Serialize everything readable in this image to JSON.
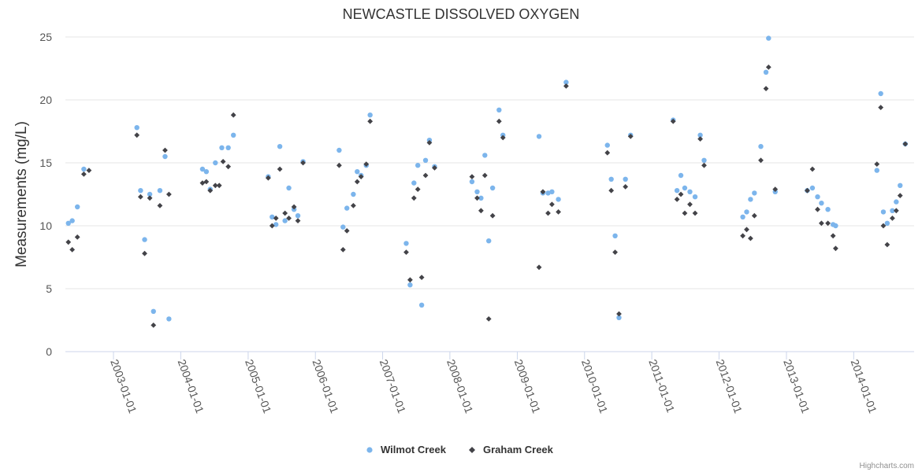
{
  "colors": {
    "wilmot": "#7cb5ec",
    "graham": "#434348"
  },
  "credits": "Highcharts.com",
  "chart_data": {
    "type": "scatter",
    "title": "NEWCASTLE DISSOLVED OXYGEN",
    "ylabel": "Measurements (mg/L)",
    "xlabel": "",
    "ylim": [
      0,
      25
    ],
    "yticks": [
      0,
      5,
      10,
      15,
      20,
      25
    ],
    "xlim": [
      "2002-04-15",
      "2014-11-25"
    ],
    "xticks": [
      "2003-01-01",
      "2004-01-01",
      "2005-01-01",
      "2006-01-01",
      "2007-01-01",
      "2008-01-01",
      "2009-01-01",
      "2010-01-01",
      "2011-01-01",
      "2012-01-01",
      "2013-01-01",
      "2014-01-01"
    ],
    "legend": "bottom-center",
    "series": [
      {
        "name": "Wilmot Creek",
        "marker": "circle",
        "points": [
          [
            "2002-05-01",
            10.2
          ],
          [
            "2002-05-22",
            10.4
          ],
          [
            "2002-06-19",
            11.5
          ],
          [
            "2002-07-24",
            14.5
          ],
          [
            "2003-05-08",
            17.8
          ],
          [
            "2003-05-28",
            12.8
          ],
          [
            "2003-06-19",
            8.9
          ],
          [
            "2003-07-17",
            12.5
          ],
          [
            "2003-08-06",
            3.2
          ],
          [
            "2003-09-10",
            12.8
          ],
          [
            "2003-10-08",
            15.5
          ],
          [
            "2003-10-29",
            2.6
          ],
          [
            "2004-04-28",
            14.5
          ],
          [
            "2004-05-19",
            14.3
          ],
          [
            "2004-06-09",
            12.9
          ],
          [
            "2004-07-07",
            15.0
          ],
          [
            "2004-08-11",
            16.2
          ],
          [
            "2004-09-15",
            16.2
          ],
          [
            "2004-10-13",
            17.2
          ],
          [
            "2005-04-20",
            13.9
          ],
          [
            "2005-05-11",
            10.7
          ],
          [
            "2005-06-01",
            10.1
          ],
          [
            "2005-06-22",
            16.3
          ],
          [
            "2005-07-20",
            10.4
          ],
          [
            "2005-08-10",
            13.0
          ],
          [
            "2005-09-07",
            11.3
          ],
          [
            "2005-09-28",
            10.8
          ],
          [
            "2005-10-26",
            15.1
          ],
          [
            "2006-05-10",
            16.0
          ],
          [
            "2006-05-31",
            9.9
          ],
          [
            "2006-06-21",
            11.4
          ],
          [
            "2006-07-26",
            12.5
          ],
          [
            "2006-08-16",
            14.3
          ],
          [
            "2006-09-06",
            14.0
          ],
          [
            "2006-10-04",
            14.8
          ],
          [
            "2006-10-25",
            18.8
          ],
          [
            "2007-05-09",
            8.6
          ],
          [
            "2007-05-30",
            5.3
          ],
          [
            "2007-06-20",
            13.4
          ],
          [
            "2007-07-11",
            14.8
          ],
          [
            "2007-08-01",
            3.7
          ],
          [
            "2007-08-22",
            15.2
          ],
          [
            "2007-09-12",
            16.8
          ],
          [
            "2007-10-10",
            14.7
          ],
          [
            "2008-04-30",
            13.5
          ],
          [
            "2008-05-28",
            12.7
          ],
          [
            "2008-06-18",
            12.2
          ],
          [
            "2008-07-09",
            15.6
          ],
          [
            "2008-07-30",
            8.8
          ],
          [
            "2008-08-20",
            13.0
          ],
          [
            "2008-09-24",
            19.2
          ],
          [
            "2008-10-15",
            17.2
          ],
          [
            "2009-04-29",
            17.1
          ],
          [
            "2009-05-20",
            12.6
          ],
          [
            "2009-06-17",
            12.6
          ],
          [
            "2009-07-08",
            12.7
          ],
          [
            "2009-08-12",
            12.1
          ],
          [
            "2009-09-23",
            21.4
          ],
          [
            "2010-05-05",
            16.4
          ],
          [
            "2010-05-26",
            13.7
          ],
          [
            "2010-06-16",
            9.2
          ],
          [
            "2010-07-07",
            2.7
          ],
          [
            "2010-08-11",
            13.7
          ],
          [
            "2010-09-08",
            17.2
          ],
          [
            "2011-04-27",
            18.4
          ],
          [
            "2011-05-18",
            12.8
          ],
          [
            "2011-06-08",
            14.0
          ],
          [
            "2011-06-29",
            13.0
          ],
          [
            "2011-07-27",
            12.7
          ],
          [
            "2011-08-24",
            12.3
          ],
          [
            "2011-09-21",
            17.2
          ],
          [
            "2011-10-12",
            15.2
          ],
          [
            "2012-05-09",
            10.7
          ],
          [
            "2012-05-30",
            11.1
          ],
          [
            "2012-06-20",
            12.1
          ],
          [
            "2012-07-11",
            12.6
          ],
          [
            "2012-08-15",
            16.3
          ],
          [
            "2012-09-12",
            22.2
          ],
          [
            "2012-09-26",
            24.9
          ],
          [
            "2012-11-01",
            12.7
          ],
          [
            "2013-04-24",
            12.8
          ],
          [
            "2013-05-22",
            13.0
          ],
          [
            "2013-06-19",
            12.3
          ],
          [
            "2013-07-10",
            11.8
          ],
          [
            "2013-08-14",
            11.3
          ],
          [
            "2013-09-11",
            10.1
          ],
          [
            "2013-09-25",
            10.0
          ],
          [
            "2014-05-07",
            14.4
          ],
          [
            "2014-05-28",
            20.5
          ],
          [
            "2014-06-11",
            11.1
          ],
          [
            "2014-07-02",
            10.2
          ],
          [
            "2014-07-30",
            11.2
          ],
          [
            "2014-08-20",
            11.9
          ],
          [
            "2014-09-10",
            13.2
          ],
          [
            "2014-10-08",
            16.5
          ]
        ]
      },
      {
        "name": "Graham Creek",
        "marker": "diamond",
        "points": [
          [
            "2002-05-01",
            8.7
          ],
          [
            "2002-05-22",
            8.1
          ],
          [
            "2002-06-19",
            9.1
          ],
          [
            "2002-07-24",
            14.1
          ],
          [
            "2002-08-21",
            14.4
          ],
          [
            "2003-05-08",
            17.2
          ],
          [
            "2003-05-28",
            12.3
          ],
          [
            "2003-06-19",
            7.8
          ],
          [
            "2003-07-17",
            12.2
          ],
          [
            "2003-08-06",
            2.1
          ],
          [
            "2003-09-10",
            11.6
          ],
          [
            "2003-10-08",
            16.0
          ],
          [
            "2003-10-29",
            12.5
          ],
          [
            "2004-04-28",
            13.4
          ],
          [
            "2004-05-19",
            13.5
          ],
          [
            "2004-06-09",
            12.8
          ],
          [
            "2004-07-07",
            13.2
          ],
          [
            "2004-07-28",
            13.2
          ],
          [
            "2004-08-18",
            15.1
          ],
          [
            "2004-09-15",
            14.7
          ],
          [
            "2004-10-13",
            18.8
          ],
          [
            "2005-04-20",
            13.8
          ],
          [
            "2005-05-11",
            10.0
          ],
          [
            "2005-06-01",
            10.6
          ],
          [
            "2005-06-22",
            14.5
          ],
          [
            "2005-07-20",
            11.0
          ],
          [
            "2005-08-10",
            10.6
          ],
          [
            "2005-09-07",
            11.5
          ],
          [
            "2005-09-28",
            10.4
          ],
          [
            "2005-10-26",
            15.0
          ],
          [
            "2006-05-10",
            14.8
          ],
          [
            "2006-05-31",
            8.1
          ],
          [
            "2006-06-21",
            9.6
          ],
          [
            "2006-07-26",
            11.6
          ],
          [
            "2006-08-16",
            13.5
          ],
          [
            "2006-09-06",
            13.9
          ],
          [
            "2006-10-04",
            14.9
          ],
          [
            "2006-10-25",
            18.3
          ],
          [
            "2007-05-09",
            7.9
          ],
          [
            "2007-05-30",
            5.7
          ],
          [
            "2007-06-20",
            12.2
          ],
          [
            "2007-07-11",
            12.9
          ],
          [
            "2007-08-01",
            5.9
          ],
          [
            "2007-08-22",
            14.0
          ],
          [
            "2007-09-12",
            16.6
          ],
          [
            "2007-10-10",
            14.6
          ],
          [
            "2008-04-30",
            13.9
          ],
          [
            "2008-05-28",
            12.2
          ],
          [
            "2008-06-18",
            11.2
          ],
          [
            "2008-07-09",
            14.0
          ],
          [
            "2008-07-30",
            2.6
          ],
          [
            "2008-08-20",
            10.8
          ],
          [
            "2008-09-24",
            18.3
          ],
          [
            "2008-10-15",
            17.0
          ],
          [
            "2009-04-29",
            6.7
          ],
          [
            "2009-05-20",
            12.7
          ],
          [
            "2009-06-17",
            11.0
          ],
          [
            "2009-07-08",
            11.7
          ],
          [
            "2009-08-12",
            11.1
          ],
          [
            "2009-09-23",
            21.1
          ],
          [
            "2010-05-05",
            15.8
          ],
          [
            "2010-05-26",
            12.8
          ],
          [
            "2010-06-16",
            7.9
          ],
          [
            "2010-07-07",
            3.0
          ],
          [
            "2010-08-11",
            13.1
          ],
          [
            "2010-09-08",
            17.1
          ],
          [
            "2011-04-27",
            18.3
          ],
          [
            "2011-05-18",
            12.1
          ],
          [
            "2011-06-08",
            12.5
          ],
          [
            "2011-06-29",
            11.0
          ],
          [
            "2011-07-27",
            11.7
          ],
          [
            "2011-08-24",
            11.0
          ],
          [
            "2011-09-21",
            16.9
          ],
          [
            "2011-10-12",
            14.8
          ],
          [
            "2012-05-09",
            9.2
          ],
          [
            "2012-05-30",
            9.7
          ],
          [
            "2012-06-20",
            9.0
          ],
          [
            "2012-07-11",
            10.8
          ],
          [
            "2012-08-15",
            15.2
          ],
          [
            "2012-09-12",
            20.9
          ],
          [
            "2012-09-26",
            22.6
          ],
          [
            "2012-11-01",
            12.9
          ],
          [
            "2013-04-24",
            12.8
          ],
          [
            "2013-05-22",
            14.5
          ],
          [
            "2013-06-19",
            11.3
          ],
          [
            "2013-07-10",
            10.2
          ],
          [
            "2013-08-14",
            10.2
          ],
          [
            "2013-09-11",
            9.2
          ],
          [
            "2013-09-25",
            8.2
          ],
          [
            "2014-05-07",
            14.9
          ],
          [
            "2014-05-28",
            19.4
          ],
          [
            "2014-06-11",
            10.0
          ],
          [
            "2014-07-02",
            8.5
          ],
          [
            "2014-07-30",
            10.6
          ],
          [
            "2014-08-20",
            11.2
          ],
          [
            "2014-09-10",
            12.4
          ],
          [
            "2014-10-08",
            16.5
          ]
        ]
      }
    ]
  }
}
